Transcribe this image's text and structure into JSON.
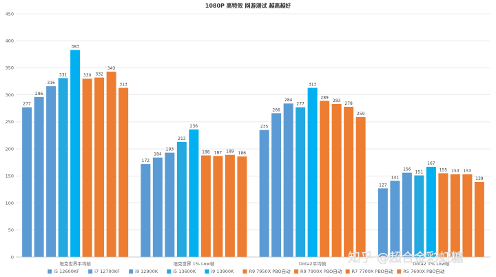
{
  "chart_data": {
    "type": "bar",
    "title": "1080P 高特效 网游测试 越高越好",
    "xlabel": "",
    "ylabel": "",
    "ylim": [
      0,
      450
    ],
    "yticks": [
      0,
      50,
      100,
      150,
      200,
      250,
      300,
      350,
      400,
      450
    ],
    "grid": true,
    "legend_position": "bottom",
    "categories": [
      "坦克世界平均帧",
      "坦克世界 1% Low帧",
      "Dota2平均帧",
      "Dota2 1% Low帧"
    ],
    "series": [
      {
        "name": "i5 12600KF",
        "color": "#5b9bd5",
        "values": [
          277,
          172,
          235,
          127
        ]
      },
      {
        "name": "i7 12700KF",
        "color": "#5b9bd5",
        "values": [
          296,
          184,
          266,
          141
        ]
      },
      {
        "name": "i9 12900K",
        "color": "#5b9bd5",
        "values": [
          316,
          193,
          284,
          156
        ]
      },
      {
        "name": "i5 13600K",
        "color": "#23a8e0",
        "values": [
          331,
          213,
          277,
          151
        ]
      },
      {
        "name": "i9 13900K",
        "color": "#00b0f0",
        "values": [
          383,
          236,
          313,
          167
        ]
      },
      {
        "name": "R9 7950X PBO自动",
        "color": "#ed7d31",
        "values": [
          330,
          188,
          289,
          155
        ]
      },
      {
        "name": "R9 7900X PBO自动",
        "color": "#ed7d31",
        "values": [
          332,
          187,
          283,
          153
        ]
      },
      {
        "name": "R7 7700X PBO自动",
        "color": "#ed7d31",
        "values": [
          343,
          189,
          278,
          153
        ]
      },
      {
        "name": "R5 7600X PBO自动",
        "color": "#ed7d31",
        "values": [
          313,
          186,
          259,
          139
        ]
      }
    ]
  },
  "watermark": {
    "text": "知乎 @超合金彩虹糖"
  }
}
